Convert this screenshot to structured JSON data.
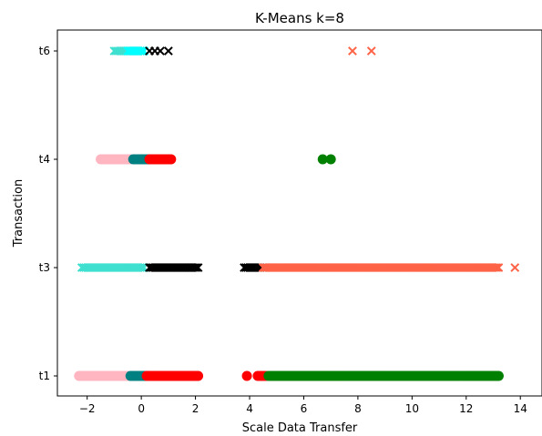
{
  "chart_data": {
    "type": "scatter",
    "title": "K-Means k=8",
    "xlabel": "Scale Data Transfer",
    "ylabel": "Transaction",
    "xlim": [
      -3.1,
      14.8
    ],
    "x_ticks": [
      -2,
      0,
      2,
      4,
      6,
      8,
      10,
      12,
      14
    ],
    "y_categories": [
      "t1",
      "t3",
      "t4",
      "t6"
    ],
    "grid": false,
    "legend": "none",
    "series": [
      {
        "marker": "circle",
        "color": "#ffb6c1",
        "segments": [
          {
            "y": "t1",
            "x": [
              -2.3,
              -0.5
            ]
          },
          {
            "y": "t4",
            "x": [
              -1.5,
              -0.4
            ]
          }
        ],
        "points": [
          {
            "y": "t4",
            "x": -1.2
          }
        ]
      },
      {
        "marker": "circle",
        "color": "#008080",
        "segments": [
          {
            "y": "t1",
            "x": [
              -0.4,
              0.2
            ]
          },
          {
            "y": "t4",
            "x": [
              -0.3,
              0.3
            ]
          }
        ]
      },
      {
        "marker": "circle",
        "color": "#ff0000",
        "segments": [
          {
            "y": "t1",
            "x": [
              0.2,
              2.1
            ]
          },
          {
            "y": "t1",
            "x": [
              4.3,
              4.6
            ]
          },
          {
            "y": "t4",
            "x": [
              0.3,
              1.1
            ]
          }
        ],
        "points": [
          {
            "y": "t1",
            "x": 3.9
          }
        ]
      },
      {
        "marker": "circle",
        "color": "#008000",
        "segments": [
          {
            "y": "t1",
            "x": [
              4.7,
              13.2
            ]
          }
        ],
        "points": [
          {
            "y": "t4",
            "x": 6.7
          },
          {
            "y": "t4",
            "x": 7.0
          }
        ]
      },
      {
        "marker": "x",
        "color": "#40e0d0",
        "segments": [
          {
            "y": "t3",
            "x": [
              -2.2,
              0.1
            ]
          },
          {
            "y": "t6",
            "x": [
              -1.0,
              0.1
            ]
          }
        ]
      },
      {
        "marker": "x",
        "color": "#00ffff",
        "segments": [
          {
            "y": "t6",
            "x": [
              -0.5,
              0.1
            ]
          }
        ]
      },
      {
        "marker": "x",
        "color": "#000000",
        "segments": [
          {
            "y": "t3",
            "x": [
              0.3,
              2.1
            ]
          },
          {
            "y": "t3",
            "x": [
              3.8,
              4.4
            ]
          }
        ],
        "points": [
          {
            "y": "t6",
            "x": 0.3
          },
          {
            "y": "t6",
            "x": 0.5
          },
          {
            "y": "t6",
            "x": 0.7
          },
          {
            "y": "t6",
            "x": 1.0
          }
        ]
      },
      {
        "marker": "x",
        "color": "#ff6347",
        "segments": [
          {
            "y": "t3",
            "x": [
              4.5,
              13.2
            ]
          }
        ],
        "points": [
          {
            "y": "t3",
            "x": 13.8
          },
          {
            "y": "t6",
            "x": 7.8
          },
          {
            "y": "t6",
            "x": 8.5
          }
        ]
      }
    ]
  }
}
